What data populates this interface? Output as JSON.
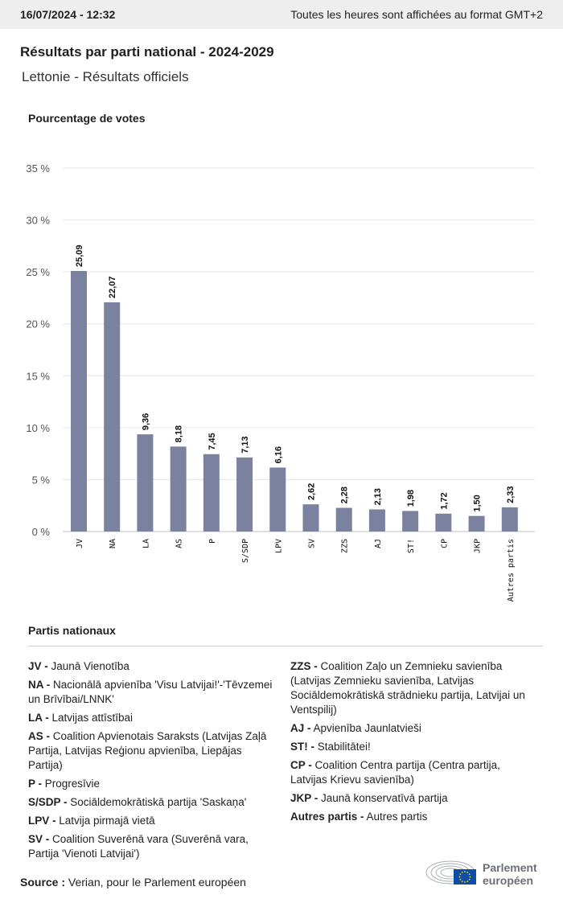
{
  "header": {
    "datetime": "16/07/2024 - 12:32",
    "timezone_note": "Toutes les heures sont affichées au format GMT+2"
  },
  "title": "Résultats par parti national - 2024-2029",
  "subtitle": "Lettonie - Résultats officiels",
  "chart_data": {
    "type": "bar",
    "ylabel": "Pourcentage de votes",
    "ylim": [
      0,
      35
    ],
    "yticks": [
      "0 %",
      "5 %",
      "10 %",
      "15 %",
      "20 %",
      "25 %",
      "30 %",
      "35 %"
    ],
    "grid": true,
    "bar_color": "#7b829f",
    "categories": [
      "JV",
      "NA",
      "LA",
      "AS",
      "P",
      "S/SDP",
      "LPV",
      "SV",
      "ZZS",
      "AJ",
      "ST!",
      "CP",
      "JKP",
      "Autres partis"
    ],
    "values": [
      25.09,
      22.07,
      9.36,
      8.18,
      7.45,
      7.13,
      6.16,
      2.62,
      2.28,
      2.13,
      1.98,
      1.72,
      1.5,
      2.33
    ],
    "value_labels": [
      "25,09",
      "22,07",
      "9,36",
      "8,18",
      "7,45",
      "7,13",
      "6,16",
      "2,62",
      "2,28",
      "2,13",
      "1,98",
      "1,72",
      "1,50",
      "2,33"
    ]
  },
  "legend": {
    "title": "Partis nationaux",
    "left": [
      {
        "abbr": "JV -",
        "name": "Jaunā Vienotība"
      },
      {
        "abbr": "NA -",
        "name": "Nacionālā apvienība 'Visu Latvijai!'-'Tēvzemei un Brīvībai/LNNK'"
      },
      {
        "abbr": "LA -",
        "name": "Latvijas attīstībai"
      },
      {
        "abbr": "AS -",
        "name": "Coalition Apvienotais Saraksts (Latvijas Zaļā Partija, Latvijas Reģionu apvienība, Liepājas Partija)"
      },
      {
        "abbr": "P -",
        "name": "Progresīvie"
      },
      {
        "abbr": "S/SDP -",
        "name": "Sociāldemokrātiskā partija 'Saskaņa'"
      },
      {
        "abbr": "LPV -",
        "name": "Latvija pirmajā vietā"
      },
      {
        "abbr": "SV -",
        "name": "Coalition Suverēnā vara (Suverēnā vara, Partija 'Vienoti Latvijai')"
      }
    ],
    "right": [
      {
        "abbr": "ZZS -",
        "name": "Coalition Zaļo un Zemnieku savienība (Latvijas Zemnieku savienība, Latvijas Sociāldemokrātiskā strādnieku partija, Latvijai un Ventspilij)"
      },
      {
        "abbr": "AJ -",
        "name": "Apvienība Jaunlatvieši"
      },
      {
        "abbr": "ST! -",
        "name": "Stabilitātei!"
      },
      {
        "abbr": "CP -",
        "name": "Coalition Centra partija (Centra partija, Latvijas Krievu savienība)"
      },
      {
        "abbr": "JKP -",
        "name": "Jaunā konservatīvā partija"
      },
      {
        "abbr": "Autres partis -",
        "name": "Autres partis"
      }
    ]
  },
  "source": {
    "label": "Source :",
    "text": "Verian, pour le Parlement européen"
  },
  "logo": {
    "line1": "Parlement",
    "line2": "européen",
    "flag_color": "#0e4da4",
    "star_color": "#ffd400"
  }
}
